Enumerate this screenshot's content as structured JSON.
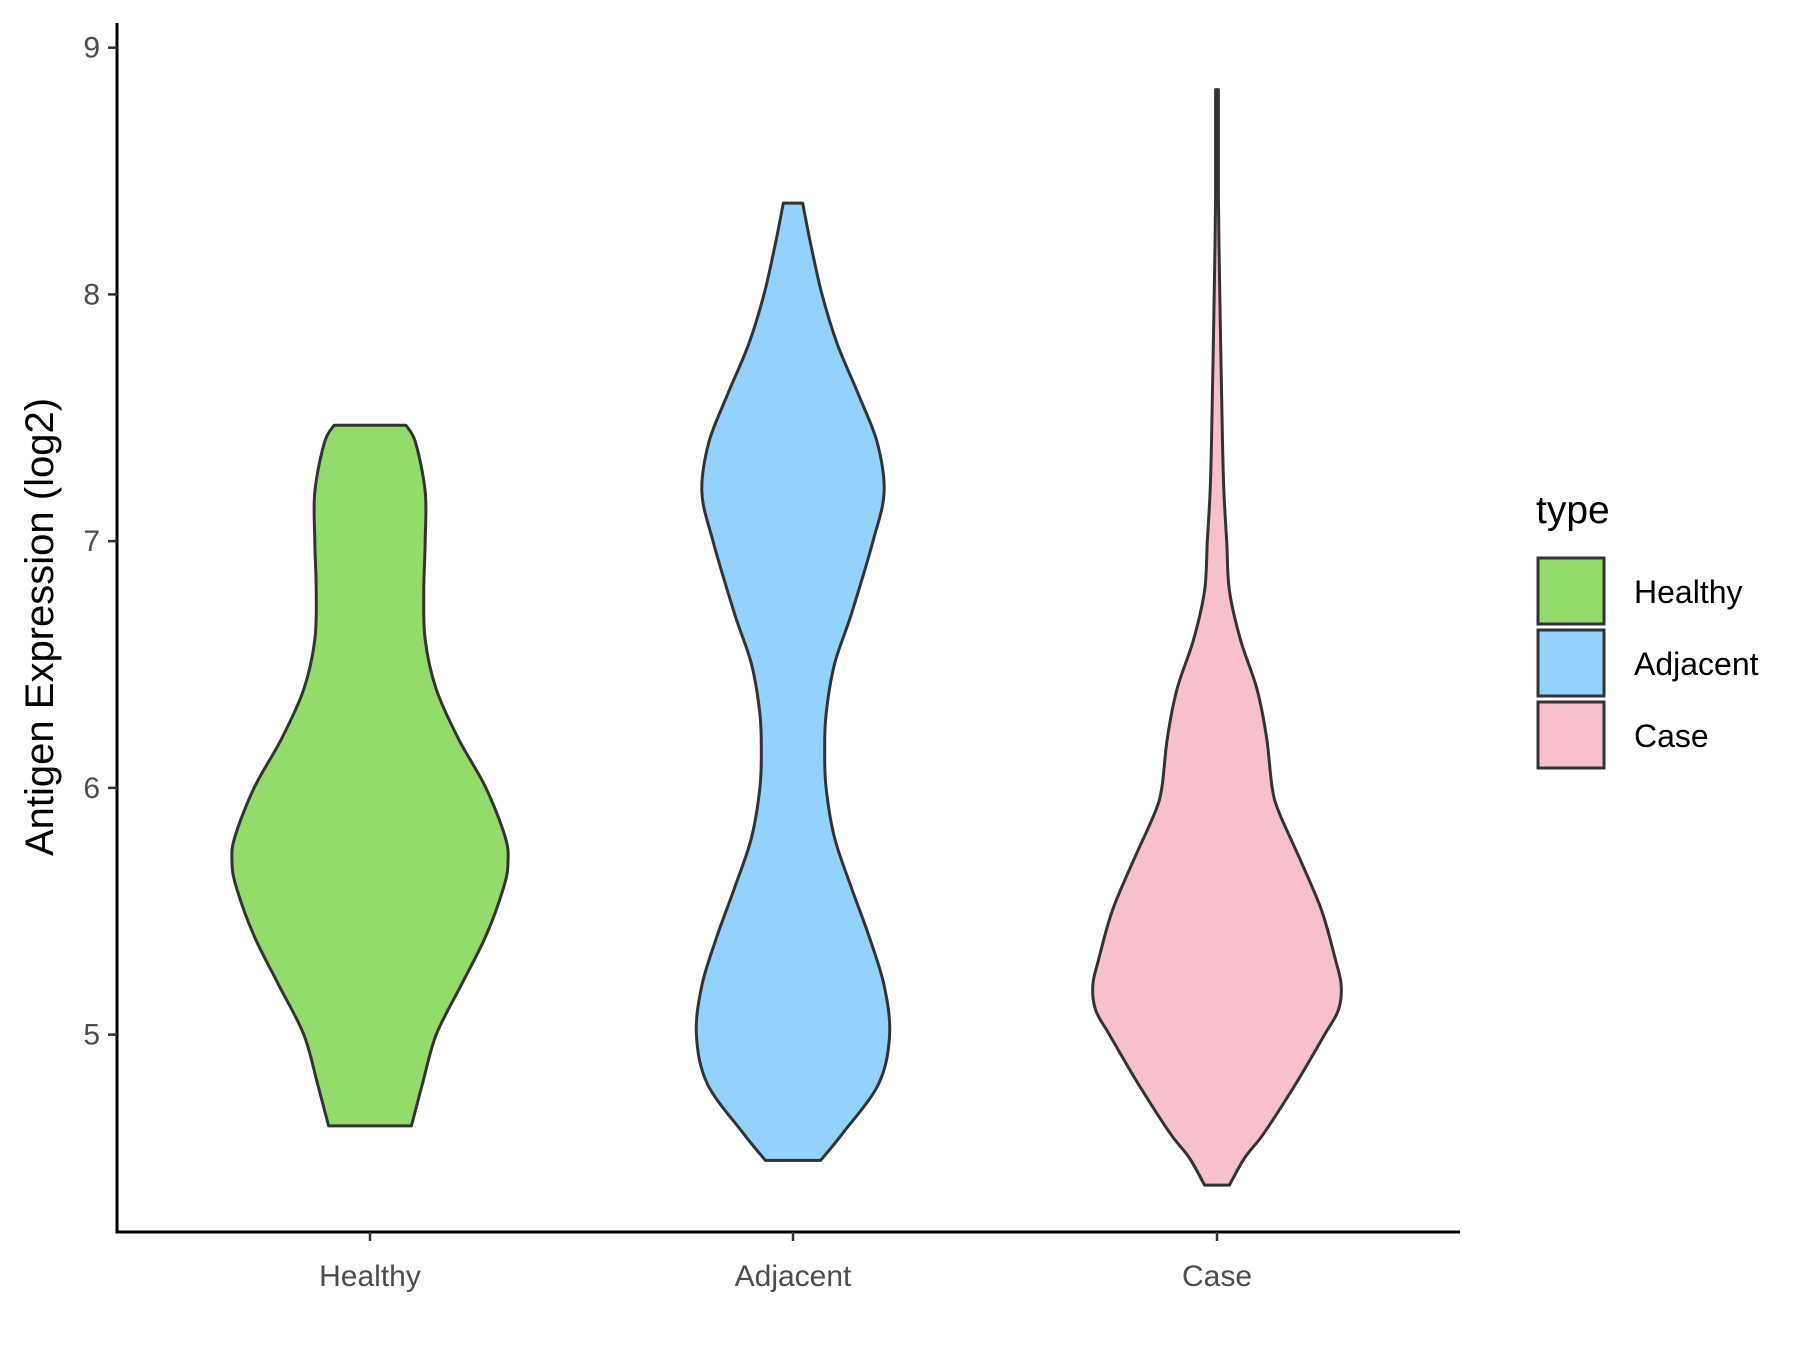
{
  "chart_data": {
    "type": "violin",
    "ylabel": "Antigen Expression (log2)",
    "ylim": [
      4.2,
      9.1
    ],
    "yticks": [
      5,
      6,
      7,
      8,
      9
    ],
    "ytick_labels": [
      "5",
      "6",
      "7",
      "8",
      "9"
    ],
    "categories": [
      "Healthy",
      "Adjacent",
      "Case"
    ],
    "legend": {
      "title": "type",
      "position": "right",
      "items": [
        "Healthy",
        "Adjacent",
        "Case"
      ]
    },
    "grid": false,
    "colors": {
      "Healthy": "#93db6a",
      "Adjacent": "#92d2fd",
      "Case": "#f7c0cb",
      "outline": "#333333"
    },
    "series": [
      {
        "category": "Healthy",
        "min": 4.63,
        "max": 7.47,
        "density": [
          [
            4.63,
            0.3
          ],
          [
            4.8,
            0.38
          ],
          [
            5.0,
            0.48
          ],
          [
            5.2,
            0.66
          ],
          [
            5.4,
            0.84
          ],
          [
            5.6,
            0.97
          ],
          [
            5.7,
            1.0
          ],
          [
            5.8,
            0.98
          ],
          [
            6.0,
            0.84
          ],
          [
            6.2,
            0.64
          ],
          [
            6.4,
            0.48
          ],
          [
            6.6,
            0.4
          ],
          [
            6.8,
            0.39
          ],
          [
            7.0,
            0.4
          ],
          [
            7.2,
            0.4
          ],
          [
            7.4,
            0.33
          ],
          [
            7.47,
            0.26
          ]
        ]
      },
      {
        "category": "Adjacent",
        "min": 4.49,
        "max": 8.37,
        "density": [
          [
            4.49,
            0.2
          ],
          [
            4.6,
            0.36
          ],
          [
            4.8,
            0.62
          ],
          [
            5.0,
            0.7
          ],
          [
            5.2,
            0.66
          ],
          [
            5.4,
            0.55
          ],
          [
            5.6,
            0.42
          ],
          [
            5.8,
            0.3
          ],
          [
            6.0,
            0.24
          ],
          [
            6.15,
            0.23
          ],
          [
            6.3,
            0.24
          ],
          [
            6.5,
            0.3
          ],
          [
            6.7,
            0.42
          ],
          [
            7.0,
            0.58
          ],
          [
            7.2,
            0.66
          ],
          [
            7.4,
            0.61
          ],
          [
            7.6,
            0.47
          ],
          [
            7.8,
            0.32
          ],
          [
            8.0,
            0.21
          ],
          [
            8.2,
            0.13
          ],
          [
            8.37,
            0.07
          ]
        ]
      },
      {
        "category": "Case",
        "min": 4.39,
        "max": 8.83,
        "density": [
          [
            4.39,
            0.09
          ],
          [
            4.5,
            0.2
          ],
          [
            4.6,
            0.34
          ],
          [
            4.8,
            0.57
          ],
          [
            5.0,
            0.78
          ],
          [
            5.1,
            0.88
          ],
          [
            5.2,
            0.9
          ],
          [
            5.3,
            0.86
          ],
          [
            5.5,
            0.76
          ],
          [
            5.7,
            0.61
          ],
          [
            5.9,
            0.45
          ],
          [
            6.0,
            0.4
          ],
          [
            6.2,
            0.36
          ],
          [
            6.4,
            0.29
          ],
          [
            6.6,
            0.17
          ],
          [
            6.8,
            0.09
          ],
          [
            7.0,
            0.07
          ],
          [
            7.2,
            0.05
          ],
          [
            7.4,
            0.04
          ],
          [
            7.7,
            0.03
          ],
          [
            8.0,
            0.02
          ],
          [
            8.4,
            0.01
          ],
          [
            8.7,
            0.01
          ],
          [
            8.83,
            0.01
          ]
        ]
      }
    ]
  }
}
